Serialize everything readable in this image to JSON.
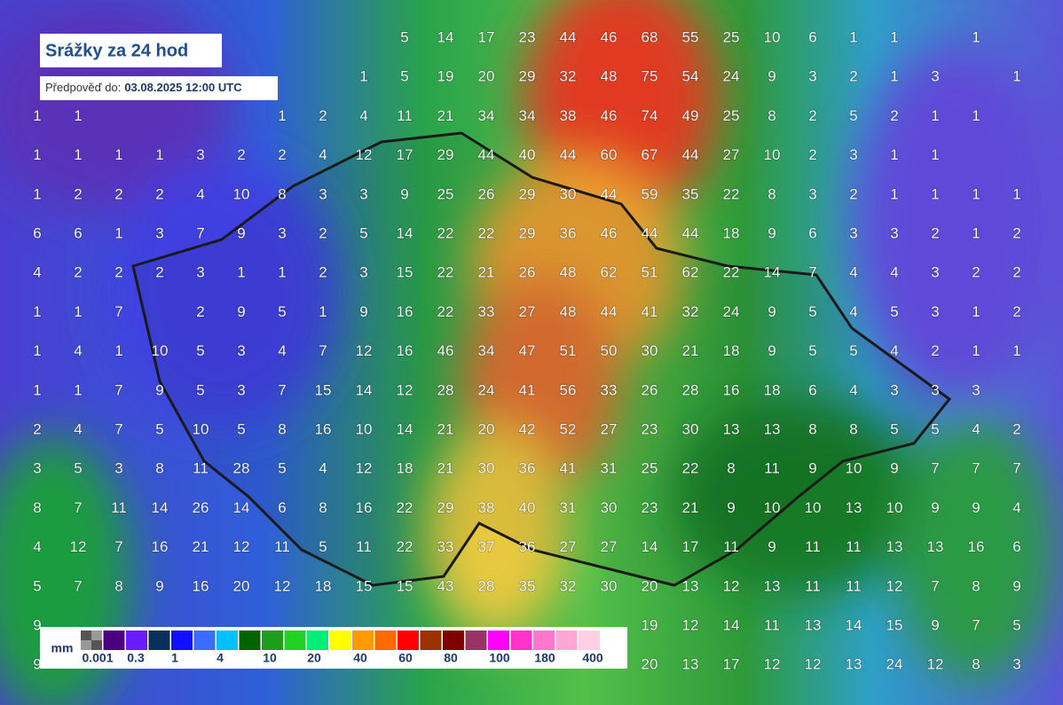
{
  "header": {
    "title": "Srážky za 24 hod",
    "forecast_label": "Předpověď do:",
    "forecast_time": "03.08.2025 12:00 UTC"
  },
  "legend": {
    "unit": "mm",
    "colors": [
      "#808080",
      "#4b0082",
      "#6a1bff",
      "#0a2f5c",
      "#1010ff",
      "#3a6cff",
      "#00c0ff",
      "#006400",
      "#1c9e1c",
      "#22d222",
      "#00ee77",
      "#ffff00",
      "#ff9a00",
      "#ff6a00",
      "#ff0000",
      "#9a3300",
      "#800000",
      "#993366",
      "#ff00ff",
      "#ff33cc",
      "#ff77cc",
      "#ffa6d2",
      "#ffd0e4"
    ],
    "labels": [
      0.001,
      0.3,
      1,
      4,
      10,
      20,
      40,
      60,
      80,
      100,
      180,
      400
    ]
  },
  "grid": {
    "rows": [
      [
        null,
        null,
        null,
        null,
        null,
        null,
        null,
        null,
        null,
        5,
        14,
        17,
        23,
        44,
        46,
        68,
        55,
        25,
        10,
        6,
        1,
        1,
        null,
        1,
        null
      ],
      [
        null,
        null,
        null,
        null,
        null,
        null,
        null,
        null,
        1,
        5,
        19,
        20,
        29,
        32,
        48,
        75,
        54,
        24,
        9,
        3,
        2,
        1,
        3,
        null,
        1
      ],
      [
        1,
        1,
        null,
        null,
        null,
        null,
        1,
        2,
        4,
        11,
        21,
        34,
        34,
        38,
        46,
        74,
        49,
        25,
        8,
        2,
        5,
        2,
        1,
        1,
        null
      ],
      [
        1,
        1,
        1,
        1,
        3,
        2,
        2,
        4,
        12,
        17,
        29,
        44,
        40,
        44,
        60,
        67,
        44,
        27,
        10,
        2,
        3,
        1,
        1,
        null,
        null
      ],
      [
        1,
        2,
        2,
        2,
        4,
        10,
        8,
        3,
        3,
        9,
        25,
        26,
        29,
        30,
        44,
        59,
        35,
        22,
        8,
        3,
        2,
        1,
        1,
        1,
        1
      ],
      [
        6,
        6,
        1,
        3,
        7,
        9,
        3,
        2,
        5,
        14,
        22,
        22,
        29,
        36,
        46,
        44,
        44,
        18,
        9,
        6,
        3,
        3,
        2,
        1,
        2
      ],
      [
        4,
        2,
        2,
        2,
        3,
        1,
        1,
        2,
        3,
        15,
        22,
        21,
        26,
        48,
        62,
        51,
        62,
        22,
        14,
        7,
        4,
        4,
        3,
        2,
        2
      ],
      [
        1,
        1,
        7,
        null,
        2,
        9,
        5,
        1,
        9,
        16,
        22,
        33,
        27,
        48,
        44,
        41,
        32,
        24,
        9,
        5,
        4,
        5,
        3,
        1,
        2
      ],
      [
        1,
        4,
        1,
        10,
        5,
        3,
        4,
        7,
        12,
        16,
        46,
        34,
        47,
        51,
        50,
        30,
        21,
        18,
        9,
        5,
        5,
        4,
        2,
        1,
        1
      ],
      [
        1,
        1,
        7,
        9,
        5,
        3,
        7,
        15,
        14,
        12,
        28,
        24,
        41,
        56,
        33,
        26,
        28,
        16,
        18,
        6,
        4,
        3,
        3,
        3,
        null
      ],
      [
        2,
        4,
        7,
        5,
        10,
        5,
        8,
        16,
        10,
        14,
        21,
        20,
        42,
        52,
        27,
        23,
        30,
        13,
        13,
        8,
        8,
        5,
        5,
        4,
        2
      ],
      [
        3,
        5,
        3,
        8,
        11,
        28,
        5,
        4,
        12,
        18,
        21,
        30,
        36,
        41,
        31,
        25,
        22,
        8,
        11,
        9,
        10,
        9,
        7,
        7,
        7
      ],
      [
        8,
        7,
        11,
        14,
        26,
        14,
        6,
        8,
        16,
        22,
        29,
        38,
        40,
        31,
        30,
        23,
        21,
        9,
        10,
        10,
        13,
        10,
        9,
        9,
        4
      ],
      [
        4,
        12,
        7,
        16,
        21,
        12,
        11,
        5,
        11,
        22,
        33,
        37,
        36,
        27,
        27,
        14,
        17,
        11,
        9,
        11,
        11,
        13,
        13,
        16,
        6
      ],
      [
        5,
        7,
        8,
        9,
        16,
        20,
        12,
        18,
        15,
        15,
        43,
        28,
        35,
        32,
        30,
        20,
        13,
        12,
        13,
        11,
        11,
        12,
        7,
        8,
        9
      ],
      [
        9,
        null,
        null,
        null,
        null,
        null,
        null,
        null,
        null,
        null,
        null,
        null,
        null,
        null,
        null,
        19,
        12,
        14,
        11,
        13,
        14,
        15,
        9,
        7,
        5
      ],
      [
        9,
        null,
        null,
        null,
        null,
        null,
        null,
        null,
        null,
        null,
        null,
        null,
        null,
        null,
        null,
        20,
        13,
        17,
        12,
        12,
        13,
        24,
        12,
        8,
        3
      ]
    ]
  }
}
